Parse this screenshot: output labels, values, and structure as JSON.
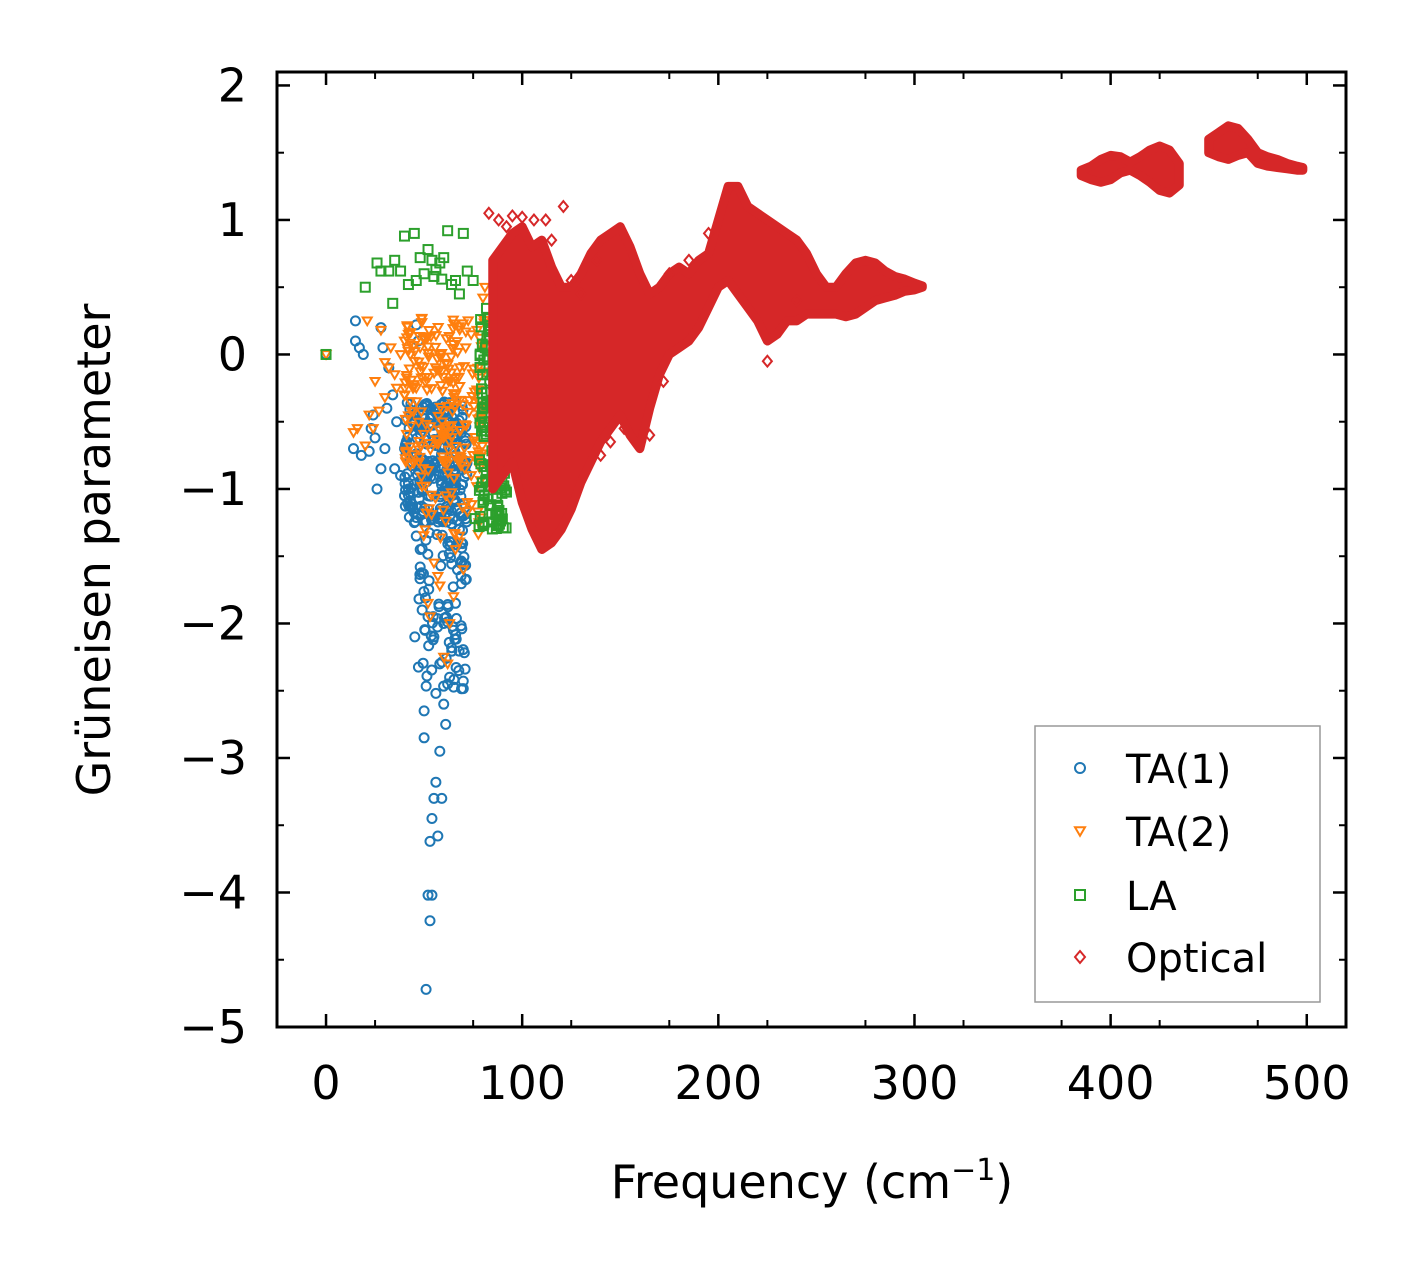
{
  "colors": {
    "ta1": "#1f77b4",
    "ta2": "#ff7f0e",
    "la": "#2ca02c",
    "optical": "#d62728"
  },
  "chart_data": {
    "type": "scatter",
    "title": "",
    "xlabel": "Frequency (cm",
    "xlabel_sup": "−1",
    "xlabel_end": ")",
    "ylabel": "Grüneisen parameter",
    "xlim": [
      -25,
      520
    ],
    "ylim": [
      -5,
      2.1
    ],
    "xticks": [
      0,
      100,
      200,
      300,
      400,
      500
    ],
    "xtick_labels": [
      "0",
      "100",
      "200",
      "300",
      "400",
      "500"
    ],
    "yticks": [
      2,
      1,
      0,
      -1,
      -2,
      -3,
      -4,
      -5
    ],
    "ytick_labels": [
      "2",
      "1",
      "0",
      "−1",
      "−2",
      "−3",
      "−4",
      "−5"
    ],
    "grid": false,
    "legend_position": "lower-right",
    "series": [
      {
        "key": "ta1",
        "name": "TA(1)",
        "marker": "circle",
        "points": [
          [
            0,
            0
          ],
          [
            14,
            -0.7
          ],
          [
            15,
            0.25
          ],
          [
            15,
            0.1
          ],
          [
            17,
            0.05
          ],
          [
            18,
            -0.75
          ],
          [
            19,
            0.0
          ],
          [
            22,
            -0.72
          ],
          [
            23,
            -0.55
          ],
          [
            24,
            -0.45
          ],
          [
            25,
            -0.62
          ],
          [
            26,
            -1.0
          ],
          [
            28,
            -0.85
          ],
          [
            28,
            0.2
          ],
          [
            29,
            0.05
          ],
          [
            30,
            -0.7
          ],
          [
            31,
            -0.4
          ],
          [
            32,
            -0.1
          ],
          [
            34,
            -0.3
          ],
          [
            35,
            -0.85
          ],
          [
            36,
            -0.5
          ],
          [
            38,
            -0.9
          ],
          [
            40,
            -1.05
          ],
          [
            40,
            -0.7
          ],
          [
            42,
            -1.0
          ],
          [
            44,
            -0.8
          ],
          [
            45,
            -1.25
          ],
          [
            46,
            0.22
          ],
          [
            46,
            -1.35
          ],
          [
            47,
            0.1
          ],
          [
            48,
            -1.45
          ],
          [
            48,
            -1.58
          ],
          [
            49,
            -1.9
          ],
          [
            50,
            -2.85
          ],
          [
            50,
            -2.65
          ],
          [
            51,
            -4.72
          ],
          [
            52,
            -1.95
          ],
          [
            52,
            -4.02
          ],
          [
            53,
            -4.21
          ],
          [
            53,
            -3.62
          ],
          [
            54,
            -3.45
          ],
          [
            54,
            -4.02
          ],
          [
            55,
            -3.3
          ],
          [
            55,
            -2.1
          ],
          [
            56,
            -2.52
          ],
          [
            56,
            -3.18
          ],
          [
            57,
            -3.58
          ],
          [
            58,
            -2.95
          ],
          [
            58,
            -2.3
          ],
          [
            59,
            -3.3
          ],
          [
            60,
            -2.6
          ],
          [
            60,
            -2.0
          ],
          [
            61,
            -2.75
          ],
          [
            62,
            -2.45
          ],
          [
            63,
            -2.4
          ],
          [
            64,
            -2.18
          ],
          [
            65,
            -2.05
          ],
          [
            66,
            -1.85
          ],
          [
            67,
            -1.6
          ],
          [
            68,
            -1.3
          ],
          [
            69,
            -1.4
          ],
          [
            70,
            -1.2
          ]
        ],
        "clusters": [
          [
            40,
            72,
            -0.35,
            -1.25,
            260
          ],
          [
            45,
            72,
            -1.2,
            -2.5,
            90
          ]
        ]
      },
      {
        "key": "ta2",
        "name": "TA(2)",
        "marker": "triangle-down",
        "points": [
          [
            0,
            0
          ],
          [
            14,
            -0.58
          ],
          [
            16,
            -0.55
          ],
          [
            20,
            -0.68
          ],
          [
            21,
            0.25
          ],
          [
            22,
            -0.45
          ],
          [
            24,
            -0.55
          ],
          [
            25,
            -0.2
          ],
          [
            27,
            -0.42
          ],
          [
            28,
            0.18
          ],
          [
            30,
            -0.32
          ],
          [
            30,
            -0.06
          ],
          [
            32,
            -0.1
          ],
          [
            33,
            0.05
          ],
          [
            35,
            -0.15
          ],
          [
            36,
            -0.25
          ],
          [
            38,
            0.0
          ],
          [
            40,
            0.1
          ],
          [
            40,
            -0.3
          ],
          [
            42,
            0.15
          ],
          [
            43,
            -0.35
          ],
          [
            45,
            -0.05
          ],
          [
            46,
            -0.25
          ],
          [
            48,
            0.05
          ],
          [
            50,
            0.12
          ],
          [
            52,
            -1.85
          ],
          [
            53,
            -1.95
          ],
          [
            55,
            -1.55
          ],
          [
            57,
            -1.65
          ],
          [
            58,
            -1.72
          ],
          [
            60,
            -2.25
          ],
          [
            62,
            -2.3
          ],
          [
            63,
            -2.0
          ],
          [
            65,
            -1.8
          ],
          [
            66,
            -1.45
          ],
          [
            68,
            -1.35
          ],
          [
            70,
            -1.6
          ],
          [
            72,
            -1.1
          ],
          [
            74,
            -0.9
          ],
          [
            75,
            -0.75
          ],
          [
            77,
            0.18
          ],
          [
            78,
            -1.25
          ],
          [
            80,
            0.42
          ],
          [
            81,
            0.5
          ],
          [
            82,
            -0.4
          ]
        ],
        "clusters": [
          [
            40,
            82,
            0.3,
            -0.85,
            200
          ],
          [
            48,
            80,
            -0.6,
            -1.4,
            40
          ]
        ]
      },
      {
        "key": "la",
        "name": "LA",
        "marker": "square",
        "points": [
          [
            0,
            0
          ],
          [
            20,
            0.5
          ],
          [
            26,
            0.68
          ],
          [
            28,
            0.62
          ],
          [
            32,
            0.62
          ],
          [
            34,
            0.38
          ],
          [
            35,
            0.7
          ],
          [
            38,
            0.62
          ],
          [
            40,
            0.88
          ],
          [
            42,
            0.52
          ],
          [
            45,
            0.9
          ],
          [
            46,
            0.55
          ],
          [
            48,
            0.72
          ],
          [
            50,
            0.6
          ],
          [
            52,
            0.78
          ],
          [
            54,
            0.7
          ],
          [
            55,
            0.58
          ],
          [
            56,
            0.63
          ],
          [
            58,
            0.68
          ],
          [
            59,
            0.56
          ],
          [
            60,
            0.72
          ],
          [
            62,
            0.92
          ],
          [
            64,
            0.52
          ],
          [
            66,
            0.55
          ],
          [
            68,
            0.45
          ],
          [
            70,
            0.9
          ],
          [
            72,
            0.62
          ],
          [
            75,
            0.55
          ],
          [
            76,
            -1.22
          ],
          [
            78,
            -1.28
          ],
          [
            80,
            -1.1
          ]
        ],
        "clusters": [
          [
            78,
            92,
            0.35,
            -1.3,
            170
          ]
        ]
      },
      {
        "key": "optical",
        "name": "Optical",
        "marker": "diamond",
        "points": [
          [
            83,
            1.05
          ],
          [
            88,
            1.0
          ],
          [
            92,
            0.95
          ],
          [
            95,
            1.03
          ],
          [
            100,
            1.02
          ],
          [
            106,
            1.0
          ],
          [
            112,
            1.0
          ],
          [
            115,
            0.85
          ],
          [
            121,
            1.1
          ],
          [
            125,
            0.55
          ],
          [
            130,
            0.45
          ],
          [
            138,
            0.7
          ],
          [
            165,
            -0.6
          ],
          [
            172,
            -0.2
          ],
          [
            140,
            -0.75
          ],
          [
            145,
            -0.65
          ],
          [
            152,
            -0.55
          ],
          [
            175,
            0.6
          ],
          [
            185,
            0.7
          ],
          [
            195,
            0.9
          ],
          [
            225,
            -0.05
          ],
          [
            240,
            0.4
          ]
        ],
        "bands": [
          [
            [
              85,
              0.7,
              -1.0
            ],
            [
              95,
              0.9,
              -0.8
            ],
            [
              100,
              0.95,
              -1.1
            ],
            [
              105,
              0.8,
              -1.3
            ],
            [
              110,
              0.85,
              -1.45
            ],
            [
              115,
              0.65,
              -1.4
            ],
            [
              120,
              0.5,
              -1.3
            ],
            [
              125,
              0.5,
              -1.15
            ],
            [
              130,
              0.6,
              -0.95
            ],
            [
              135,
              0.75,
              -0.8
            ],
            [
              140,
              0.85,
              -0.65
            ],
            [
              145,
              0.9,
              -0.55
            ],
            [
              150,
              0.95,
              -0.45
            ],
            [
              155,
              0.8,
              -0.6
            ],
            [
              160,
              0.6,
              -0.7
            ],
            [
              165,
              0.45,
              -0.4
            ],
            [
              170,
              0.5,
              -0.15
            ],
            [
              175,
              0.6,
              0.0
            ],
            [
              180,
              0.65,
              0.05
            ],
            [
              185,
              0.6,
              0.1
            ],
            [
              190,
              0.7,
              0.2
            ],
            [
              195,
              0.75,
              0.35
            ],
            [
              200,
              1.0,
              0.5
            ],
            [
              205,
              1.25,
              0.55
            ],
            [
              210,
              1.25,
              0.45
            ],
            [
              215,
              1.1,
              0.35
            ],
            [
              220,
              1.05,
              0.25
            ],
            [
              225,
              1.0,
              0.1
            ],
            [
              230,
              0.95,
              0.15
            ],
            [
              235,
              0.9,
              0.25
            ],
            [
              240,
              0.85,
              0.25
            ],
            [
              245,
              0.75,
              0.3
            ],
            [
              250,
              0.6,
              0.3
            ],
            [
              255,
              0.5,
              0.3
            ],
            [
              260,
              0.5,
              0.3
            ],
            [
              265,
              0.6,
              0.28
            ],
            [
              270,
              0.68,
              0.3
            ],
            [
              275,
              0.7,
              0.35
            ],
            [
              280,
              0.68,
              0.4
            ],
            [
              285,
              0.62,
              0.42
            ],
            [
              290,
              0.58,
              0.44
            ],
            [
              295,
              0.56,
              0.47
            ],
            [
              300,
              0.53,
              0.48
            ],
            [
              304,
              0.51,
              0.5
            ]
          ],
          [
            [
              385,
              1.37,
              1.33
            ],
            [
              390,
              1.4,
              1.3
            ],
            [
              395,
              1.45,
              1.28
            ],
            [
              400,
              1.48,
              1.3
            ],
            [
              405,
              1.47,
              1.35
            ],
            [
              410,
              1.43,
              1.37
            ],
            [
              415,
              1.47,
              1.33
            ],
            [
              420,
              1.52,
              1.28
            ],
            [
              425,
              1.55,
              1.22
            ],
            [
              430,
              1.52,
              1.2
            ],
            [
              435,
              1.42,
              1.26
            ]
          ],
          [
            [
              450,
              1.6,
              1.5
            ],
            [
              455,
              1.65,
              1.47
            ],
            [
              460,
              1.7,
              1.45
            ],
            [
              465,
              1.68,
              1.48
            ],
            [
              470,
              1.6,
              1.5
            ],
            [
              475,
              1.5,
              1.42
            ],
            [
              480,
              1.47,
              1.4
            ],
            [
              485,
              1.45,
              1.39
            ],
            [
              490,
              1.42,
              1.38
            ],
            [
              495,
              1.4,
              1.37
            ],
            [
              498,
              1.39,
              1.37
            ]
          ]
        ]
      }
    ]
  }
}
